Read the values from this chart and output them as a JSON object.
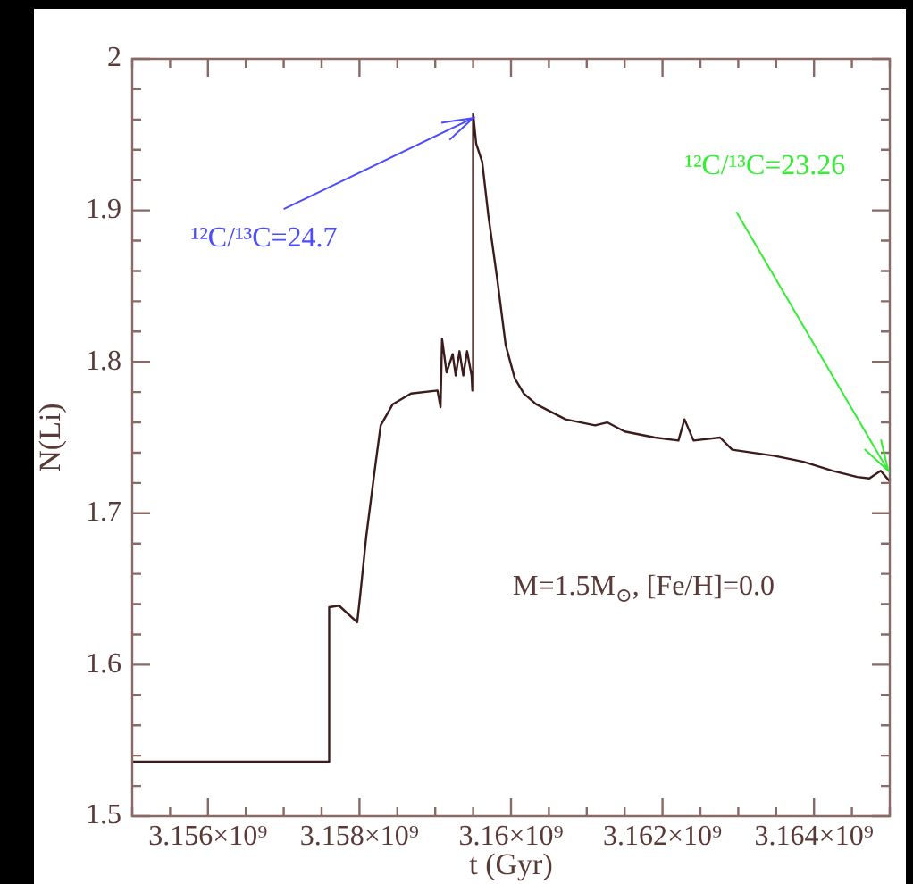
{
  "chart_data": {
    "type": "line",
    "xlabel": "t (Gyr)",
    "ylabel": "N(Li)",
    "x": [
      3155000000,
      3157600000,
      3157600000,
      3157730000,
      3157970000,
      3158010000,
      3158090000,
      3158210000,
      3158280000,
      3158440000,
      3158680000,
      3159030000,
      3159070000,
      3159090000,
      3159150000,
      3159230000,
      3159270000,
      3159320000,
      3159370000,
      3159420000,
      3159480000,
      3159490000,
      3159500000,
      3159540000,
      3159620000,
      3159700000,
      3159820000,
      3159930000,
      3160050000,
      3160170000,
      3160330000,
      3160720000,
      3161110000,
      3161270000,
      3161500000,
      3161900000,
      3162210000,
      3162290000,
      3162410000,
      3162760000,
      3162920000,
      3163470000,
      3163860000,
      3164250000,
      3164570000,
      3164730000,
      3164880000,
      3165000000
    ],
    "series": [
      {
        "color": "#3b1c1a",
        "values": [
          1.536,
          1.536,
          1.638,
          1.639,
          1.628,
          1.646,
          1.685,
          1.732,
          1.758,
          1.772,
          1.779,
          1.781,
          1.77,
          1.815,
          1.793,
          1.805,
          1.791,
          1.807,
          1.791,
          1.807,
          1.791,
          1.781,
          1.964,
          1.944,
          1.932,
          1.897,
          1.854,
          1.811,
          1.789,
          1.779,
          1.772,
          1.762,
          1.758,
          1.76,
          1.754,
          1.75,
          1.748,
          1.762,
          1.748,
          1.75,
          1.742,
          1.738,
          1.734,
          1.728,
          1.724,
          1.723,
          1.728,
          1.721
        ]
      }
    ],
    "xlim": [
      3155000000,
      3165000000
    ],
    "ylim": [
      1.5,
      2
    ],
    "xticks": [
      {
        "value": 3155000000,
        "label": null
      },
      {
        "value": 3155500000,
        "label": null
      },
      {
        "value": 3156000000,
        "label": "3.156×10⁹"
      },
      {
        "value": 3156500000,
        "label": null
      },
      {
        "value": 3157000000,
        "label": null
      },
      {
        "value": 3157500000,
        "label": null
      },
      {
        "value": 3158000000,
        "label": "3.158×10⁹"
      },
      {
        "value": 3158500000,
        "label": null
      },
      {
        "value": 3159000000,
        "label": null
      },
      {
        "value": 3159500000,
        "label": null
      },
      {
        "value": 3160000000,
        "label": "3.16×10⁹"
      },
      {
        "value": 3160500000,
        "label": null
      },
      {
        "value": 3161000000,
        "label": null
      },
      {
        "value": 3161500000,
        "label": null
      },
      {
        "value": 3162000000,
        "label": "3.162×10⁹"
      },
      {
        "value": 3162500000,
        "label": null
      },
      {
        "value": 3163000000,
        "label": null
      },
      {
        "value": 3163500000,
        "label": null
      },
      {
        "value": 3164000000,
        "label": "3.164×10⁹"
      },
      {
        "value": 3164500000,
        "label": null
      },
      {
        "value": 3165000000,
        "label": null
      }
    ],
    "yticks": [
      1.5,
      {
        "value": 1.52,
        "label": null
      },
      {
        "value": 1.54,
        "label": null
      },
      {
        "value": 1.56,
        "label": null
      },
      {
        "value": 1.58,
        "label": null
      },
      1.6,
      {
        "value": 1.62,
        "label": null
      },
      {
        "value": 1.64,
        "label": null
      },
      {
        "value": 1.66,
        "label": null
      },
      {
        "value": 1.68,
        "label": null
      },
      1.7,
      {
        "value": 1.72,
        "label": null
      },
      {
        "value": 1.74,
        "label": null
      },
      {
        "value": 1.76,
        "label": null
      },
      {
        "value": 1.78,
        "label": null
      },
      1.8,
      {
        "value": 1.82,
        "label": null
      },
      {
        "value": 1.84,
        "label": null
      },
      {
        "value": 1.86,
        "label": null
      },
      {
        "value": 1.88,
        "label": null
      },
      1.9,
      {
        "value": 1.92,
        "label": null
      },
      {
        "value": 1.94,
        "label": null
      },
      {
        "value": 1.96,
        "label": null
      },
      {
        "value": 1.98,
        "label": null
      },
      2
    ],
    "annotations": [
      {
        "text": "¹²C/¹³C=24.7",
        "x": 3159500000,
        "y": 1.961
      },
      {
        "text": "¹²C/¹³C=23.26",
        "x": 3164980000,
        "y": 1.728
      },
      "M=1.5M$_{⊙}$, [Fe/H]=0.0"
    ],
    "grid": false,
    "legend": false,
    "marker": "none",
    "line_style": "solid"
  }
}
